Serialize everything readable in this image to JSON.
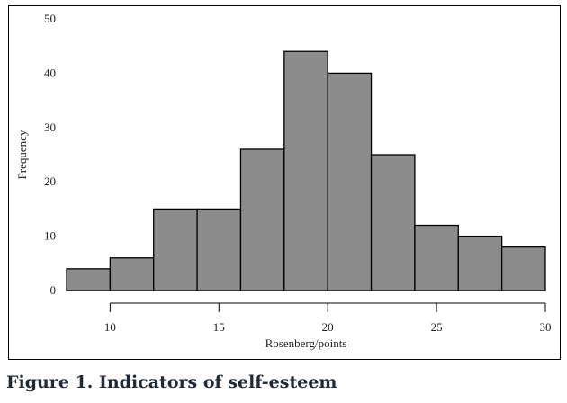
{
  "caption": "Figure 1. Indicators of self-esteem",
  "chart_data": {
    "type": "bar",
    "subtype": "histogram",
    "bins": [
      {
        "x0": 8,
        "x1": 10,
        "value": 4
      },
      {
        "x0": 10,
        "x1": 12,
        "value": 6
      },
      {
        "x0": 12,
        "x1": 14,
        "value": 15
      },
      {
        "x0": 14,
        "x1": 16,
        "value": 15
      },
      {
        "x0": 16,
        "x1": 18,
        "value": 26
      },
      {
        "x0": 18,
        "x1": 20,
        "value": 44
      },
      {
        "x0": 20,
        "x1": 22,
        "value": 40
      },
      {
        "x0": 22,
        "x1": 24,
        "value": 25
      },
      {
        "x0": 24,
        "x1": 26,
        "value": 12
      },
      {
        "x0": 26,
        "x1": 28,
        "value": 10
      },
      {
        "x0": 28,
        "x1": 30,
        "value": 8
      }
    ],
    "xlabel": "Rosenberg/points",
    "ylabel": "Frequency",
    "xlim": [
      8,
      30
    ],
    "ylim": [
      0,
      50
    ],
    "xticks": [
      10,
      15,
      20,
      25,
      30
    ],
    "yticks": [
      0,
      10,
      20,
      30,
      40,
      50
    ],
    "grid": false,
    "bar_color": "#8c8c8c",
    "edge_color": "#000000"
  }
}
